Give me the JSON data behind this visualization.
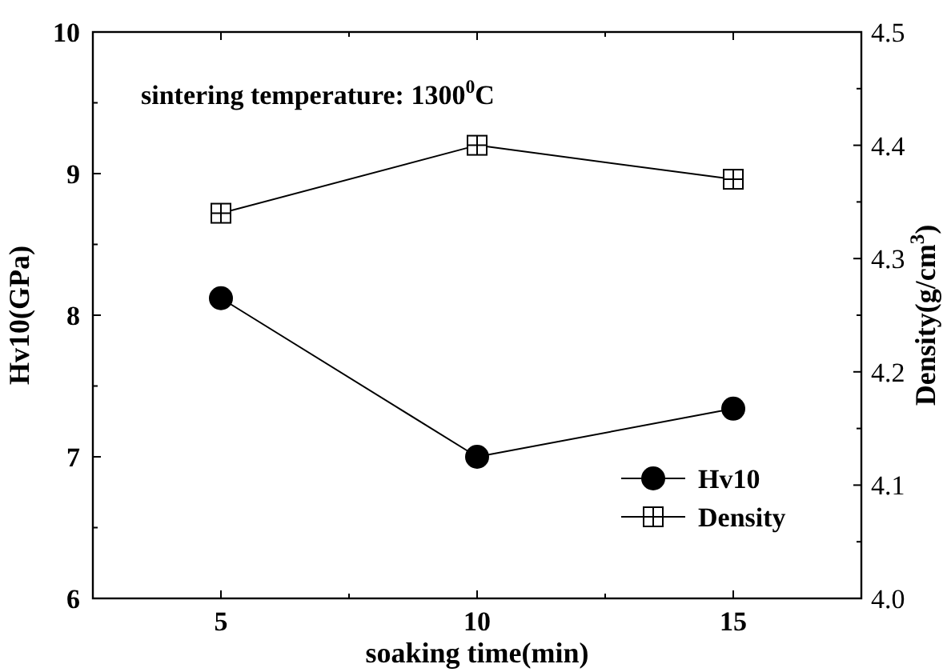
{
  "chart_data": {
    "type": "line",
    "xlabel": "soaking time(min)",
    "ylabel": "Hv10(GPa)",
    "y2label": "Density(g/cm$^{3}$)",
    "x": [
      5,
      10,
      15
    ],
    "series": [
      {
        "name": "Hv10",
        "color": "#000000",
        "values": [
          8.12,
          7.0,
          7.34
        ],
        "marker": "circle"
      },
      {
        "name": "Density",
        "color": "#000000",
        "values": [
          4.34,
          4.4,
          4.37
        ],
        "axis": "y2",
        "marker": "square"
      }
    ],
    "xlim": [
      2.5,
      17.5
    ],
    "xticks": [
      5,
      10,
      15
    ],
    "ylim": [
      6,
      10
    ],
    "yticks": [
      6,
      7,
      8,
      9,
      10
    ],
    "y2lim": [
      4.0,
      4.5
    ],
    "y2ticks": [
      "4.0",
      4.1,
      4.2,
      4.3,
      4.4,
      4.5
    ],
    "annotations": [
      "sintering temperature: 1300$^{0}$C"
    ],
    "legend": "bottom right",
    "grid": false,
    "line_style": "solid"
  }
}
